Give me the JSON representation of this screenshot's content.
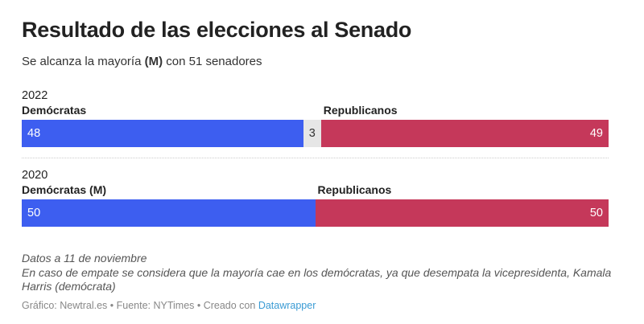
{
  "colors": {
    "dem": "#3d5ef0",
    "rep": "#c5385a",
    "other": "#e6e6e6"
  },
  "chart_data": {
    "type": "bar",
    "stacked": true,
    "orientation": "horizontal",
    "title": "Resultado de las elecciones al Senado",
    "subtitle_pre": "Se alcanza la mayoría ",
    "subtitle_bold": "(M)",
    "subtitle_post": " con 51 senadores",
    "xlim": [
      0,
      100
    ],
    "groups": [
      {
        "year": "2022",
        "dem_label": "Demócratas",
        "rep_label": "Republicanos",
        "dem": 48,
        "other": 3,
        "rep": 49
      },
      {
        "year": "2020",
        "dem_label": "Demócratas (M)",
        "rep_label": "Republicanos",
        "dem": 50,
        "other": 0,
        "rep": 50
      }
    ]
  },
  "notes": [
    "Datos a 11 de noviembre",
    "En caso de empate se considera que la mayoría cae en los demócratas, ya que desempata la vicepresidenta, Kamala Harris (demócrata)"
  ],
  "footer": {
    "text": "Gráfico: Newtral.es • Fuente: NYTimes • Creado con ",
    "link": "Datawrapper"
  }
}
